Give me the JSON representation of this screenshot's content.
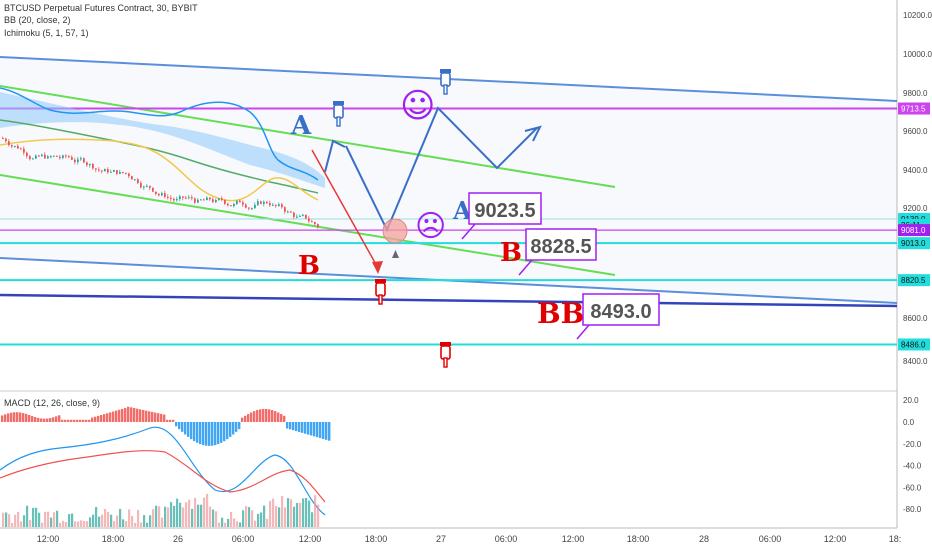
{
  "legend": {
    "symbol": "BTCUSD Perpetual Futures Contract, 30, BYBIT",
    "bb": "BB (20, close, 2)",
    "ichimoku": "Ichimoku (5, 1, 57, 1)",
    "macd": "MACD (12, 26, close, 9)"
  },
  "colors": {
    "candle_up": "#26a69a",
    "candle_down": "#ef5350",
    "bb_basis": "#2196f3",
    "channel_green": "#66dd55",
    "trend_blue": "#5b8fdc",
    "level_magenta": "#cc44ee",
    "level_cyan": "#22dddd",
    "support_navy": "#3344bb",
    "arrow_red": "#e53935",
    "annotation_red": "#e00000",
    "annotation_blue": "#3a6fc8",
    "smiley_purple": "#a020f0"
  },
  "price_axis": {
    "ticks": [
      "10200.0",
      "10000.0",
      "9800.0",
      "9600.0",
      "9400.0",
      "9200.0",
      "8600.0",
      "8400.0"
    ],
    "badges": [
      {
        "label": "9713.5",
        "price": 9713.5,
        "color": "#cc44ee"
      },
      {
        "label": "9139.0",
        "price": 9139.0,
        "color": "#22dddd"
      },
      {
        "label": "26:11",
        "price": 9108,
        "color": "#22dddd"
      },
      {
        "label": "9081.0",
        "price": 9081.0,
        "color": "#a020f0"
      },
      {
        "label": "9013.0",
        "price": 9013.0,
        "color": "#22dddd"
      },
      {
        "label": "8820.5",
        "price": 8820.5,
        "color": "#22dddd"
      },
      {
        "label": "8486.0",
        "price": 8486.0,
        "color": "#22dddd"
      }
    ]
  },
  "macd_axis": {
    "ticks": [
      "20.0",
      "0.0",
      "-20.0",
      "-40.0",
      "-60.0",
      "-80.0"
    ]
  },
  "time_axis": {
    "labels": [
      "12:00",
      "18:00",
      "26",
      "06:00",
      "12:00",
      "18:00",
      "27",
      "06:00",
      "12:00",
      "18:00",
      "28",
      "06:00",
      "12:00",
      "18:"
    ]
  },
  "annotations": {
    "letter_a1": "A",
    "letter_a2": "A",
    "letter_b1": "B",
    "letter_b2": "B",
    "letter_bb": "BB",
    "box_a": "9023.5",
    "box_b": "8828.5",
    "box_bb": "8493.0",
    "smile": "☺",
    "frown": "☹"
  },
  "chart_data": {
    "type": "candlestick",
    "symbol": "BTCUSD",
    "interval": "30",
    "price_range": [
      8300,
      10260
    ],
    "last_price": 9139.0,
    "horizontal_levels": [
      9713.5,
      9139.0,
      9081.0,
      9013.0,
      8820.5,
      8486.0
    ],
    "target_boxes": [
      9023.5,
      8828.5,
      8493.0
    ],
    "macd_range": [
      -90,
      22
    ]
  }
}
